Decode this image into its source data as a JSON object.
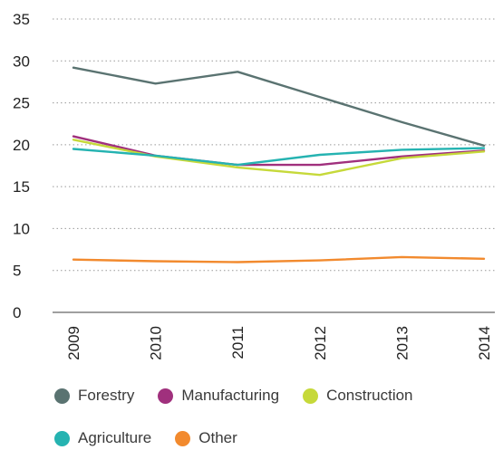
{
  "chart_data": {
    "type": "line",
    "categories": [
      "2009",
      "2010",
      "2011",
      "2012",
      "2013",
      "2014"
    ],
    "ylim": [
      0,
      35
    ],
    "yticks": [
      0,
      5,
      10,
      15,
      20,
      25,
      30,
      35
    ],
    "grid": true,
    "legend_position": "bottom",
    "xlabel": "",
    "ylabel": "",
    "series": [
      {
        "name": "Forestry",
        "color": "#5a7371",
        "values": [
          29.2,
          27.3,
          28.7,
          25.7,
          22.7,
          19.9
        ]
      },
      {
        "name": "Manufacturing",
        "color": "#a0307d",
        "values": [
          21.0,
          18.7,
          17.6,
          17.6,
          18.6,
          19.3
        ]
      },
      {
        "name": "Construction",
        "color": "#c6d93a",
        "values": [
          20.6,
          18.6,
          17.3,
          16.4,
          18.4,
          19.2
        ]
      },
      {
        "name": "Agriculture",
        "color": "#25b3b1",
        "values": [
          19.5,
          18.7,
          17.6,
          18.8,
          19.4,
          19.6
        ]
      },
      {
        "name": "Other",
        "color": "#f28a2e",
        "values": [
          6.3,
          6.1,
          6.0,
          6.2,
          6.6,
          6.4
        ]
      }
    ]
  }
}
